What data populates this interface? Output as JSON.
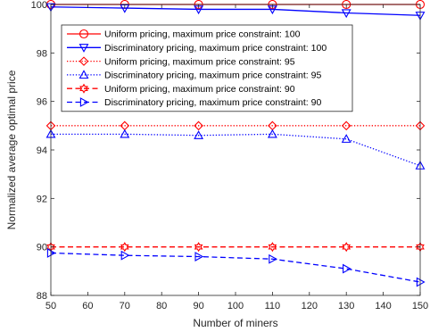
{
  "chart_data": {
    "type": "line",
    "title": "",
    "xlabel": "Number of miners",
    "ylabel": "Normalized average optimal price",
    "xlim": [
      50,
      150
    ],
    "ylim": [
      88,
      100
    ],
    "xticks": [
      50,
      60,
      70,
      80,
      90,
      100,
      110,
      120,
      130,
      140,
      150
    ],
    "yticks": [
      88,
      90,
      92,
      94,
      96,
      98,
      100
    ],
    "grid": false,
    "legend_position": "top-right",
    "x": [
      50,
      70,
      90,
      110,
      130,
      150
    ],
    "series": [
      {
        "name": "Uniform pricing, maximum price constraint: 100",
        "values": [
          100,
          100,
          100,
          100,
          100,
          100
        ],
        "color": "#ff0000",
        "line_style": "solid",
        "marker": "circle"
      },
      {
        "name": "Discriminatory pricing, maximum price constraint: 100",
        "values": [
          99.9,
          99.85,
          99.8,
          99.8,
          99.65,
          99.55
        ],
        "color": "#0000ff",
        "line_style": "solid",
        "marker": "triangle-down"
      },
      {
        "name": "Uniform pricing, maximum price constraint: 95",
        "values": [
          95,
          95,
          95,
          95,
          95,
          95
        ],
        "color": "#ff0000",
        "line_style": "dotted",
        "marker": "diamond"
      },
      {
        "name": "Discriminatory pricing, maximum price constraint: 95",
        "values": [
          94.65,
          94.65,
          94.6,
          94.65,
          94.45,
          93.35
        ],
        "color": "#0000ff",
        "line_style": "dotted",
        "marker": "triangle-up"
      },
      {
        "name": "Uniform pricing, maximum price constraint: 90",
        "values": [
          90,
          90,
          90,
          90,
          90,
          90
        ],
        "color": "#ff0000",
        "line_style": "dashed",
        "marker": "hexagram"
      },
      {
        "name": "Discriminatory pricing, maximum price constraint: 90",
        "values": [
          89.75,
          89.65,
          89.6,
          89.5,
          89.1,
          88.55
        ],
        "color": "#0000ff",
        "line_style": "dashed",
        "marker": "triangle-right"
      }
    ]
  }
}
